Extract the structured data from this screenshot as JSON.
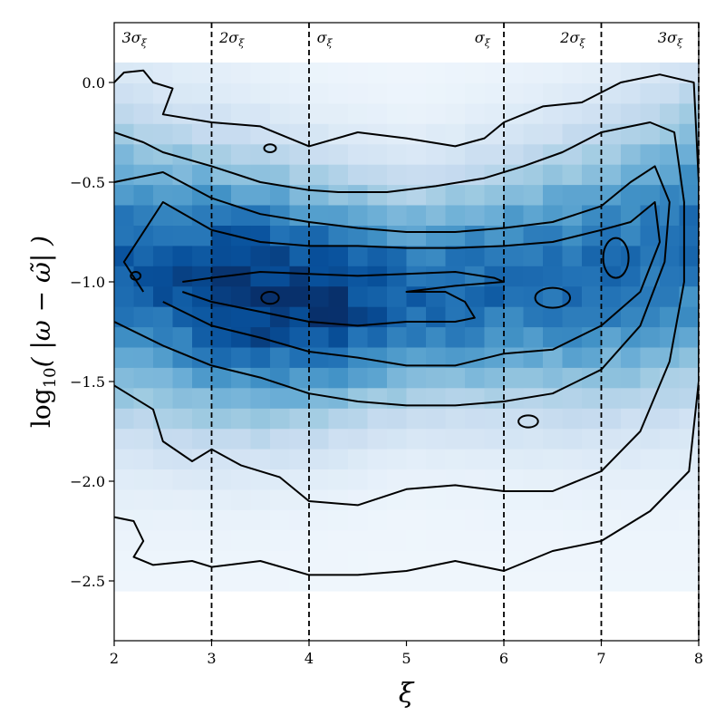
{
  "chart_data": {
    "type": "heatmap",
    "title": "",
    "xlabel": "ξ",
    "ylabel_prefix": "log",
    "ylabel_sub": "10",
    "ylabel_body": "( |ω − ω̃| )",
    "xlim": [
      2,
      8
    ],
    "ylim": [
      -2.8,
      0.3
    ],
    "x_ticks": [
      2,
      3,
      4,
      5,
      6,
      7,
      8
    ],
    "x_tick_labels": [
      "2",
      "3",
      "4",
      "5",
      "6",
      "7",
      "8"
    ],
    "y_ticks": [
      0.0,
      -0.5,
      -1.0,
      -1.5,
      -2.0,
      -2.5
    ],
    "y_tick_labels": [
      "0.0",
      "−0.5",
      "−1.0",
      "−1.5",
      "−2.0",
      "−2.5"
    ],
    "grid": false,
    "colormap": "Blues",
    "vertical_lines": [
      {
        "x": 3,
        "style": "dashed"
      },
      {
        "x": 4,
        "style": "dashed"
      },
      {
        "x": 6,
        "style": "dashed"
      },
      {
        "x": 7,
        "style": "dashed"
      },
      {
        "x": 8,
        "style": "dashed"
      }
    ],
    "annotations": [
      {
        "text": "3σ",
        "sub": "ξ",
        "x": 2.08,
        "y": 0.2
      },
      {
        "text": "2σ",
        "sub": "ξ",
        "x": 3.08,
        "y": 0.2
      },
      {
        "text": "σ",
        "sub": "ξ",
        "x": 4.08,
        "y": 0.2
      },
      {
        "text": "σ",
        "sub": "ξ",
        "x": 5.7,
        "y": 0.2
      },
      {
        "text": "2σ",
        "sub": "ξ",
        "x": 6.58,
        "y": 0.2
      },
      {
        "text": "3σ",
        "sub": "ξ",
        "x": 7.58,
        "y": 0.2
      }
    ],
    "density": {
      "x_bins": 30,
      "y_bins": 26,
      "x_range": [
        2,
        8
      ],
      "y_range": [
        -2.55,
        0.1
      ],
      "ridge": [
        [
          2.0,
          -0.92
        ],
        [
          3.0,
          -1.02
        ],
        [
          4.0,
          -1.08
        ],
        [
          5.0,
          -1.08
        ],
        [
          6.0,
          -1.02
        ],
        [
          7.0,
          -0.95
        ],
        [
          8.0,
          -0.8
        ]
      ],
      "peak_x": 3.7,
      "peak_y": -1.08
    },
    "contours": [
      [
        [
          2.0,
          -2.18
        ],
        [
          2.2,
          -2.2
        ],
        [
          2.3,
          -2.3
        ],
        [
          2.2,
          -2.38
        ],
        [
          2.4,
          -2.42
        ],
        [
          2.8,
          -2.4
        ],
        [
          3.0,
          -2.43
        ],
        [
          3.5,
          -2.4
        ],
        [
          4.0,
          -2.47
        ],
        [
          4.5,
          -2.47
        ],
        [
          5.0,
          -2.45
        ],
        [
          5.5,
          -2.4
        ],
        [
          6.0,
          -2.45
        ],
        [
          6.5,
          -2.35
        ],
        [
          7.0,
          -2.3
        ],
        [
          7.5,
          -2.15
        ],
        [
          7.9,
          -1.95
        ],
        [
          8.0,
          -1.5
        ],
        [
          8.0,
          -0.5
        ],
        [
          7.95,
          0.0
        ],
        [
          7.6,
          0.04
        ],
        [
          7.2,
          0.0
        ],
        [
          6.8,
          -0.1
        ],
        [
          6.4,
          -0.12
        ],
        [
          6.0,
          -0.2
        ],
        [
          5.8,
          -0.28
        ],
        [
          5.5,
          -0.32
        ],
        [
          5.0,
          -0.28
        ],
        [
          4.5,
          -0.25
        ],
        [
          4.0,
          -0.32
        ],
        [
          3.5,
          -0.22
        ],
        [
          3.0,
          -0.2
        ],
        [
          2.5,
          -0.16
        ],
        [
          2.6,
          -0.03
        ],
        [
          2.4,
          0.0
        ],
        [
          2.3,
          0.06
        ],
        [
          2.1,
          0.05
        ],
        [
          2.0,
          0.0
        ]
      ],
      [
        [
          2.0,
          -1.52
        ],
        [
          2.4,
          -1.64
        ],
        [
          2.5,
          -1.8
        ],
        [
          2.8,
          -1.9
        ],
        [
          3.0,
          -1.84
        ],
        [
          3.3,
          -1.92
        ],
        [
          3.7,
          -1.98
        ],
        [
          4.0,
          -2.1
        ],
        [
          4.5,
          -2.12
        ],
        [
          5.0,
          -2.04
        ],
        [
          5.5,
          -2.02
        ],
        [
          6.0,
          -2.05
        ],
        [
          6.5,
          -2.05
        ],
        [
          7.0,
          -1.95
        ],
        [
          7.4,
          -1.75
        ],
        [
          7.7,
          -1.4
        ],
        [
          7.85,
          -1.0
        ],
        [
          7.85,
          -0.6
        ],
        [
          7.75,
          -0.25
        ],
        [
          7.5,
          -0.2
        ],
        [
          7.0,
          -0.25
        ],
        [
          6.6,
          -0.35
        ],
        [
          6.2,
          -0.42
        ],
        [
          5.8,
          -0.48
        ],
        [
          5.3,
          -0.52
        ],
        [
          4.8,
          -0.55
        ],
        [
          4.3,
          -0.55
        ],
        [
          4.0,
          -0.54
        ],
        [
          3.5,
          -0.5
        ],
        [
          3.0,
          -0.42
        ],
        [
          2.5,
          -0.35
        ],
        [
          2.3,
          -0.3
        ],
        [
          2.0,
          -0.25
        ]
      ],
      [
        [
          2.0,
          -1.2
        ],
        [
          2.5,
          -1.32
        ],
        [
          3.0,
          -1.42
        ],
        [
          3.5,
          -1.48
        ],
        [
          4.0,
          -1.56
        ],
        [
          4.5,
          -1.6
        ],
        [
          5.0,
          -1.62
        ],
        [
          5.5,
          -1.62
        ],
        [
          6.0,
          -1.6
        ],
        [
          6.5,
          -1.56
        ],
        [
          7.0,
          -1.44
        ],
        [
          7.4,
          -1.22
        ],
        [
          7.65,
          -0.9
        ],
        [
          7.7,
          -0.6
        ],
        [
          7.55,
          -0.42
        ],
        [
          7.3,
          -0.5
        ],
        [
          7.0,
          -0.62
        ],
        [
          6.5,
          -0.7
        ],
        [
          6.0,
          -0.73
        ],
        [
          5.5,
          -0.75
        ],
        [
          5.0,
          -0.75
        ],
        [
          4.5,
          -0.73
        ],
        [
          4.0,
          -0.7
        ],
        [
          3.5,
          -0.66
        ],
        [
          3.0,
          -0.58
        ],
        [
          2.5,
          -0.45
        ],
        [
          2.0,
          -0.5
        ]
      ],
      [
        [
          2.5,
          -1.1
        ],
        [
          3.0,
          -1.22
        ],
        [
          3.5,
          -1.28
        ],
        [
          4.0,
          -1.35
        ],
        [
          4.5,
          -1.38
        ],
        [
          5.0,
          -1.42
        ],
        [
          5.5,
          -1.42
        ],
        [
          6.0,
          -1.36
        ],
        [
          6.5,
          -1.34
        ],
        [
          7.0,
          -1.22
        ],
        [
          7.4,
          -1.05
        ],
        [
          7.6,
          -0.8
        ],
        [
          7.55,
          -0.6
        ],
        [
          7.3,
          -0.7
        ],
        [
          7.0,
          -0.74
        ],
        [
          6.5,
          -0.8
        ],
        [
          6.0,
          -0.82
        ],
        [
          5.5,
          -0.83
        ],
        [
          5.0,
          -0.83
        ],
        [
          4.5,
          -0.82
        ],
        [
          4.0,
          -0.82
        ],
        [
          3.5,
          -0.8
        ],
        [
          3.0,
          -0.74
        ],
        [
          2.5,
          -0.6
        ],
        [
          2.1,
          -0.9
        ],
        [
          2.3,
          -1.05
        ]
      ],
      [
        [
          2.7,
          -1.05
        ],
        [
          3.0,
          -1.1
        ],
        [
          3.5,
          -1.15
        ],
        [
          4.0,
          -1.2
        ],
        [
          4.5,
          -1.22
        ],
        [
          5.0,
          -1.2
        ],
        [
          5.5,
          -1.2
        ],
        [
          5.7,
          -1.18
        ],
        [
          5.6,
          -1.1
        ],
        [
          5.4,
          -1.05
        ],
        [
          5.0,
          -1.05
        ],
        [
          5.5,
          -1.02
        ],
        [
          6.0,
          -1.0
        ],
        [
          5.9,
          -0.98
        ],
        [
          5.5,
          -0.95
        ],
        [
          5.0,
          -0.96
        ],
        [
          4.5,
          -0.97
        ],
        [
          4.0,
          -0.96
        ],
        [
          3.5,
          -0.95
        ],
        [
          3.0,
          -0.98
        ],
        [
          2.7,
          -1.0
        ]
      ]
    ],
    "islands": [
      {
        "cx": 2.22,
        "cy": -0.97,
        "rx": 0.05,
        "ry": 0.02
      },
      {
        "cx": 2.65,
        "cy": -0.9,
        "rx": 0.0,
        "ry": 0.0
      },
      {
        "cx": 3.6,
        "cy": -1.08,
        "rx": 0.09,
        "ry": 0.03
      },
      {
        "cx": 3.6,
        "cy": -0.33,
        "rx": 0.06,
        "ry": 0.02
      },
      {
        "cx": 6.25,
        "cy": -1.7,
        "rx": 0.1,
        "ry": 0.03
      },
      {
        "cx": 6.5,
        "cy": -1.08,
        "rx": 0.18,
        "ry": 0.05
      },
      {
        "cx": 7.15,
        "cy": -0.88,
        "rx": 0.13,
        "ry": 0.1
      }
    ]
  }
}
